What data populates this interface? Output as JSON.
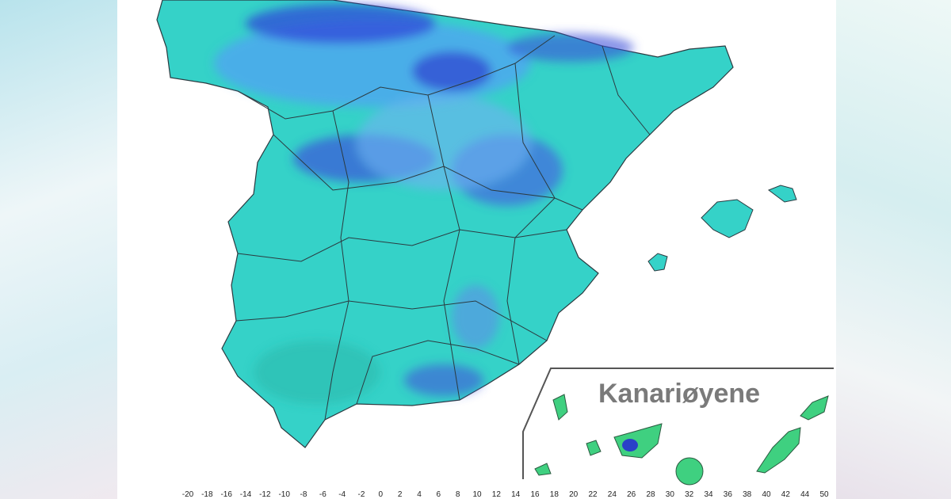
{
  "map": {
    "inset_label": "Kanariøyene",
    "legend": {
      "ticks": [
        -20,
        -18,
        -16,
        -14,
        -12,
        -10,
        -8,
        -6,
        -4,
        -2,
        0,
        2,
        4,
        6,
        8,
        10,
        12,
        14,
        16,
        18,
        20,
        22,
        24,
        26,
        28,
        30,
        32,
        34,
        36,
        38,
        40,
        42,
        44,
        50
      ]
    }
  }
}
